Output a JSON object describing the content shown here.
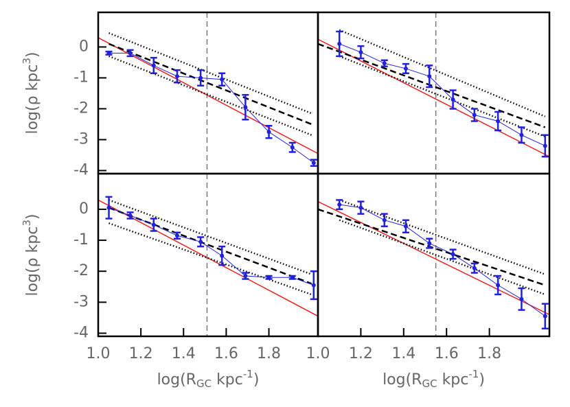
{
  "chart_data": [
    {
      "type": "errorbar",
      "xlim": [
        1.0,
        2.03
      ],
      "ylim": [
        -4.1,
        1.12
      ],
      "yticks": [
        0,
        -1,
        -2,
        -3,
        -4
      ],
      "ylabel": [
        "log(ρ kpc",
        "3",
        ")"
      ],
      "vline": 1.51,
      "points": {
        "color": "#2020dd",
        "x": [
          1.05,
          1.15,
          1.26,
          1.37,
          1.48,
          1.58,
          1.69,
          1.8,
          1.91,
          2.01
        ],
        "values": [
          -0.2,
          -0.2,
          -0.6,
          -0.95,
          -1.0,
          -1.05,
          -1.95,
          -2.75,
          -3.25,
          -3.75
        ],
        "errors": [
          0.05,
          0.1,
          0.25,
          0.2,
          0.25,
          0.2,
          0.4,
          0.2,
          0.15,
          0.1
        ]
      },
      "lines": [
        {
          "color": "#ee2222",
          "style": "solid",
          "x": [
            1.0,
            2.03
          ],
          "values": [
            0.3,
            -3.45
          ]
        },
        {
          "color": "#000000",
          "style": "dashed",
          "x": [
            1.05,
            2.0
          ],
          "values": [
            0.1,
            -2.5
          ]
        },
        {
          "color": "#000000",
          "style": "dotted",
          "x": [
            1.05,
            2.0
          ],
          "values": [
            0.45,
            -2.15
          ]
        },
        {
          "color": "#000000",
          "style": "dotted",
          "x": [
            1.05,
            2.0
          ],
          "values": [
            -0.3,
            -2.85
          ]
        }
      ]
    },
    {
      "type": "errorbar",
      "xlim": [
        1.0,
        2.08
      ],
      "ylim": [
        -4.1,
        1.12
      ],
      "vline": 1.55,
      "points": {
        "color": "#2020dd",
        "x": [
          1.1,
          1.2,
          1.31,
          1.41,
          1.52,
          1.63,
          1.73,
          1.84,
          1.95,
          2.06
        ],
        "values": [
          0.1,
          -0.17,
          -0.53,
          -0.7,
          -0.95,
          -1.7,
          -2.2,
          -2.4,
          -2.85,
          -3.2
        ],
        "errors": [
          0.4,
          0.2,
          0.1,
          0.15,
          0.35,
          0.3,
          0.2,
          0.3,
          0.25,
          0.35
        ]
      },
      "lines": [
        {
          "color": "#ee2222",
          "style": "solid",
          "x": [
            1.0,
            2.08
          ],
          "values": [
            0.25,
            -3.55
          ]
        },
        {
          "color": "#000000",
          "style": "dashed",
          "x": [
            1.0,
            2.06
          ],
          "values": [
            0.1,
            -2.6
          ]
        },
        {
          "color": "#000000",
          "style": "dotted",
          "x": [
            1.1,
            2.06
          ],
          "values": [
            0.55,
            -2.25
          ]
        },
        {
          "color": "#000000",
          "style": "dotted",
          "x": [
            1.1,
            2.06
          ],
          "values": [
            -0.3,
            -2.9
          ]
        }
      ]
    },
    {
      "type": "errorbar",
      "xlim": [
        1.0,
        2.03
      ],
      "ylim": [
        -4.1,
        1.15
      ],
      "yticks": [
        0,
        -1,
        -2,
        -3,
        -4
      ],
      "ylabel": [
        "log(ρ kpc",
        "3",
        ")"
      ],
      "xticks": [
        {
          "value": 1.0,
          "label": "1.0"
        },
        1.2,
        1.4,
        1.6,
        1.8
      ],
      "xlabel": [
        "log(R",
        "GC",
        " kpc",
        "-1",
        ")"
      ],
      "vline": 1.51,
      "points": {
        "color": "#2020dd",
        "x": [
          1.05,
          1.15,
          1.26,
          1.37,
          1.48,
          1.58,
          1.69,
          1.8,
          1.91,
          2.01
        ],
        "values": [
          0.05,
          -0.2,
          -0.5,
          -0.85,
          -1.05,
          -1.5,
          -2.15,
          -2.2,
          -2.2,
          -2.45
        ],
        "errors": [
          0.35,
          0.1,
          0.2,
          0.1,
          0.15,
          0.3,
          0.1,
          0.05,
          0.05,
          0.45
        ]
      },
      "lines": [
        {
          "color": "#ee2222",
          "style": "solid",
          "x": [
            1.0,
            2.03
          ],
          "values": [
            0.3,
            -3.45
          ]
        },
        {
          "color": "#000000",
          "style": "dashed",
          "x": [
            1.05,
            2.0
          ],
          "values": [
            0.05,
            -2.4
          ]
        },
        {
          "color": "#000000",
          "style": "dotted",
          "x": [
            1.05,
            2.0
          ],
          "values": [
            0.3,
            -2.1
          ]
        },
        {
          "color": "#000000",
          "style": "dotted",
          "x": [
            1.05,
            2.0
          ],
          "values": [
            -0.45,
            -2.75
          ]
        }
      ]
    },
    {
      "type": "errorbar",
      "xlim": [
        1.0,
        2.08
      ],
      "ylim": [
        -4.1,
        1.15
      ],
      "xticks": [
        {
          "value": 1.0,
          "label": "1.0"
        },
        1.2,
        1.4,
        1.6,
        1.8
      ],
      "xlabel": [
        "log(R",
        "GC",
        " kpc",
        "-1",
        ")"
      ],
      "vline": 1.55,
      "points": {
        "color": "#2020dd",
        "x": [
          1.1,
          1.2,
          1.31,
          1.41,
          1.52,
          1.63,
          1.73,
          1.84,
          1.95,
          2.06
        ],
        "values": [
          0.15,
          0.05,
          -0.35,
          -0.55,
          -1.1,
          -1.45,
          -1.9,
          -2.45,
          -2.9,
          -3.45
        ],
        "errors": [
          0.15,
          0.2,
          0.2,
          0.2,
          0.15,
          0.15,
          0.15,
          0.3,
          0.35,
          0.4
        ]
      },
      "lines": [
        {
          "color": "#ee2222",
          "style": "solid",
          "x": [
            1.0,
            2.08
          ],
          "values": [
            0.25,
            -3.4
          ]
        },
        {
          "color": "#000000",
          "style": "dashed",
          "x": [
            1.0,
            2.06
          ],
          "values": [
            0.0,
            -2.45
          ]
        },
        {
          "color": "#000000",
          "style": "dotted",
          "x": [
            1.1,
            2.06
          ],
          "values": [
            0.3,
            -2.1
          ]
        },
        {
          "color": "#000000",
          "style": "dotted",
          "x": [
            1.1,
            2.06
          ],
          "values": [
            -0.35,
            -2.75
          ]
        }
      ]
    }
  ]
}
